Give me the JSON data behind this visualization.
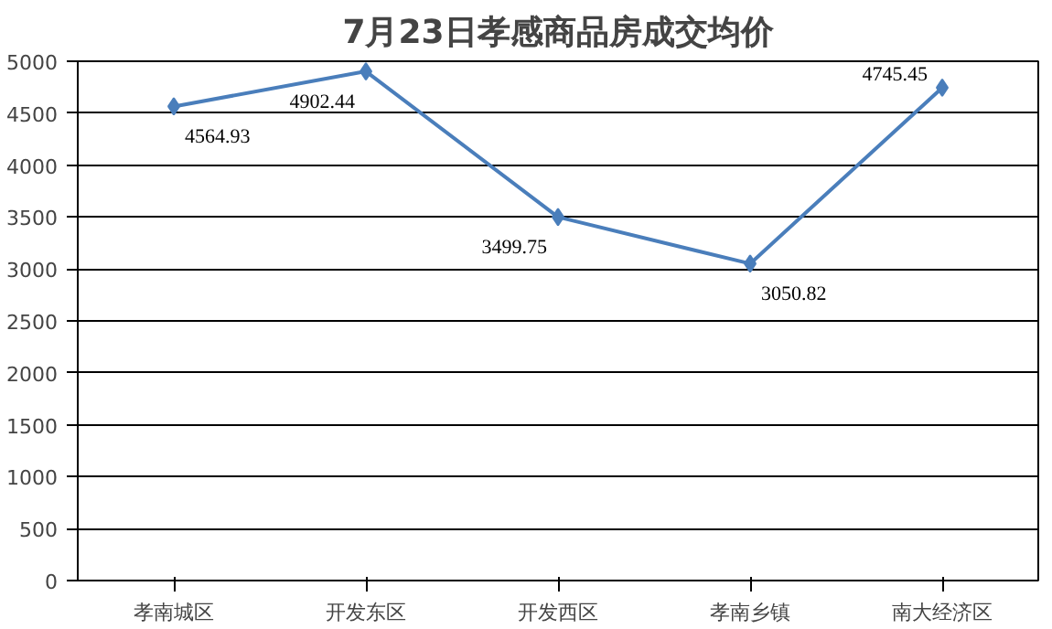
{
  "chart_data": {
    "type": "line",
    "title": "7月23日孝感商品房成交均价",
    "categories": [
      "孝南城区",
      "开发东区",
      "开发西区",
      "孝南乡镇",
      "南大经济区"
    ],
    "series": [
      {
        "color": "#4a7ebb",
        "values": [
          4564.93,
          4902.44,
          3499.75,
          3050.82,
          4745.45
        ]
      }
    ],
    "ylim": [
      0,
      5000
    ],
    "yticks": [
      0,
      500,
      1000,
      1500,
      2000,
      2500,
      3000,
      3500,
      4000,
      4500,
      5000
    ],
    "grid": "y",
    "marker": "diamond",
    "line_style": "solid",
    "data_labels": true
  }
}
